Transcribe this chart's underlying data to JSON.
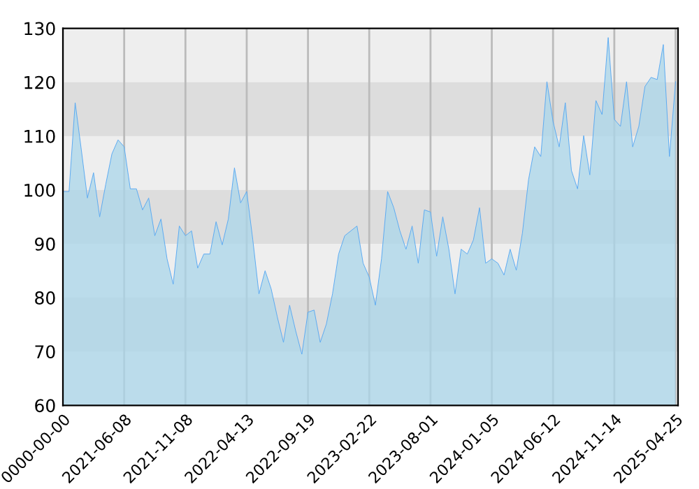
{
  "chart_data": {
    "type": "area",
    "categories": [
      "0000-00-00",
      null,
      null,
      null,
      null,
      null,
      null,
      null,
      null,
      null,
      "2021-06-08",
      null,
      null,
      null,
      null,
      null,
      null,
      null,
      null,
      null,
      "2021-11-08",
      null,
      null,
      null,
      null,
      null,
      null,
      null,
      null,
      null,
      "2022-04-13",
      null,
      null,
      null,
      null,
      null,
      null,
      null,
      null,
      null,
      "2022-09-19",
      null,
      null,
      null,
      null,
      null,
      null,
      null,
      null,
      null,
      "2023-02-22",
      null,
      null,
      null,
      null,
      null,
      null,
      null,
      null,
      null,
      "2023-08-01",
      null,
      null,
      null,
      null,
      null,
      null,
      null,
      null,
      null,
      "2024-01-05",
      null,
      null,
      null,
      null,
      null,
      null,
      null,
      null,
      null,
      "2024-06-12",
      null,
      null,
      null,
      null,
      null,
      null,
      null,
      null,
      null,
      "2024-11-14",
      null,
      null,
      null,
      null,
      null,
      null,
      null,
      null,
      null,
      "2025-04-25"
    ],
    "series": [
      {
        "color": "#5aa9f2",
        "values": [
          99.7,
          99.7,
          116.2,
          107.5,
          98.5,
          103.2,
          95.0,
          101.1,
          106.7,
          109.3,
          108.0,
          100.2,
          100.2,
          96.3,
          98.5,
          91.5,
          94.6,
          87.2,
          82.5,
          93.3,
          91.5,
          92.4,
          85.5,
          88.1,
          88.1,
          94.1,
          89.8,
          94.6,
          104.1,
          97.6,
          99.7,
          90.7,
          80.7,
          85.0,
          81.6,
          76.4,
          71.7,
          78.6,
          73.8,
          69.5,
          77.3,
          77.7,
          71.7,
          75.1,
          80.7,
          88.1,
          91.5,
          92.4,
          93.3,
          86.4,
          83.8,
          78.6,
          87.2,
          99.7,
          96.7,
          92.4,
          89.0,
          93.3,
          86.4,
          96.3,
          95.9,
          87.7,
          95.0,
          89.0,
          80.7,
          89.0,
          88.1,
          90.7,
          96.7,
          86.4,
          87.2,
          86.4,
          84.2,
          89.0,
          85.1,
          92.0,
          101.9,
          108.0,
          106.2,
          120.1,
          112.7,
          108.0,
          116.2,
          103.6,
          100.2,
          110.1,
          102.8,
          116.6,
          114.0,
          128.3,
          113.1,
          111.8,
          120.1,
          108.0,
          111.8,
          119.2,
          120.9,
          120.5,
          127.0,
          106.2,
          120.1
        ]
      }
    ],
    "ylim": [
      60,
      130
    ],
    "yticks": [
      60,
      70,
      80,
      90,
      100,
      110,
      120,
      130
    ],
    "bands": [
      {
        "axis": "y",
        "from": 110,
        "to": 120,
        "color": "#dddddd"
      },
      {
        "axis": "y",
        "from": 90,
        "to": 100,
        "color": "#dddddd"
      },
      {
        "axis": "y",
        "from": 70,
        "to": 80,
        "color": "#dddddd"
      }
    ],
    "grid": "x"
  }
}
